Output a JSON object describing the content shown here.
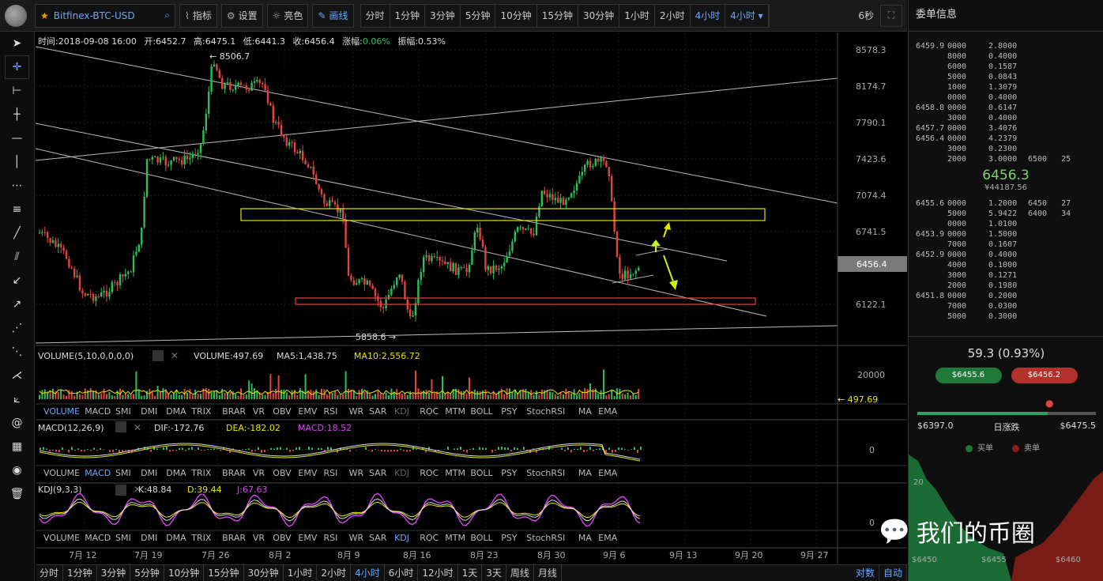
{
  "topbar": {
    "symbol": "Bitfinex-BTC-USD",
    "indicators": "指标",
    "settings": "设置",
    "brightness": "亮色",
    "draw": "画线",
    "periods": [
      "分时",
      "1分钟",
      "3分钟",
      "5分钟",
      "10分钟",
      "15分钟",
      "30分钟",
      "1小时",
      "2小时",
      "4小时",
      "4小时"
    ],
    "active_period": "4小时",
    "refresh": "6秒"
  },
  "ohlc_line": {
    "time": "时间:2018-09-08 16:00",
    "open": "开:6452.7",
    "high": "高:6475.1",
    "low": "低:6441.3",
    "close": "收:6456.4",
    "chg_label": "涨幅:",
    "chg_value": "0.06%",
    "amp": "振幅:0.53%"
  },
  "price_axis": [
    "8578.3",
    "8174.7",
    "7790.1",
    "7423.6",
    "7074.4",
    "6741.5",
    "6456.4",
    "6122.1"
  ],
  "last_price": "6456.4",
  "annotations": {
    "high": "← 8506.7",
    "low": "5858.6 →"
  },
  "volume": {
    "title": "VOLUME(5,10,0,0,0,0)",
    "vol": "VOLUME:497.69",
    "ma5": "MA5:1,438.75",
    "ma10": "MA10:2,556.72",
    "axis": "20000",
    "last": "← 497.69"
  },
  "tabs": [
    "VOLUME",
    "MACD",
    "SMI",
    "DMI",
    "DMA",
    "TRIX",
    "BRAR",
    "VR",
    "OBV",
    "EMV",
    "RSI",
    "WR",
    "SAR",
    "KDJ",
    "ROC",
    "MTM",
    "BOLL",
    "PSY",
    "StochRSI",
    "MA",
    "EMA"
  ],
  "macd": {
    "title": "MACD(12,26,9)",
    "dif": "DIF:-172.76",
    "dea": "DEA:-182.02",
    "macd": "MACD:18.52",
    "axis": "0"
  },
  "kdj": {
    "title": "KDJ(9,3,3)",
    "k": "K:48.84",
    "d": "D:39.44",
    "j": "J:67.63",
    "axis": "0"
  },
  "dates": [
    "7月 12",
    "7月 19",
    "7月 26",
    "8月 2",
    "8月 9",
    "8月 16",
    "8月 23",
    "8月 30",
    "9月 6",
    "9月 13",
    "9月 20",
    "9月 27"
  ],
  "bottom": {
    "periods": [
      "分时",
      "1分钟",
      "3分钟",
      "5分钟",
      "10分钟",
      "15分钟",
      "30分钟",
      "1小时",
      "2小时",
      "4小时",
      "6小时",
      "12小时",
      "1天",
      "3天",
      "周线",
      "月线"
    ],
    "active": "4小时",
    "log": "对数",
    "auto": "自动"
  },
  "orderbook": {
    "title": "委单信息",
    "asks": [
      [
        "6459.9",
        "0000",
        "2.8000",
        ""
      ],
      [
        "",
        "8000",
        "0.4000",
        ""
      ],
      [
        "",
        "6000",
        "0.1587",
        ""
      ],
      [
        "",
        "5000",
        "0.0843",
        ""
      ],
      [
        "",
        "1000",
        "1.3079",
        ""
      ],
      [
        "",
        "0000",
        "0.4000",
        ""
      ],
      [
        "6458.8",
        "0000",
        "0.6147",
        ""
      ],
      [
        "",
        "3000",
        "0.4000",
        ""
      ],
      [
        "6457.7",
        "0000",
        "3.4076",
        ""
      ],
      [
        "6456.4",
        "0000",
        "4.2379",
        ""
      ],
      [
        "",
        "3000",
        "0.2300",
        ""
      ],
      [
        "",
        "2000",
        "3.0000",
        "6500   25"
      ]
    ],
    "mid_price": "6456.3",
    "mid_cny": "¥44187.56",
    "bids": [
      [
        "6455.6",
        "0000",
        "1.2000",
        "6450   27"
      ],
      [
        "",
        "5000",
        "5.9422",
        "6400   34"
      ],
      [
        "",
        "0000",
        "1.0100",
        ""
      ],
      [
        "6453.9",
        "0000",
        "1.5000",
        ""
      ],
      [
        "",
        "7000",
        "0.1607",
        ""
      ],
      [
        "6452.9",
        "0000",
        "0.4000",
        ""
      ],
      [
        "",
        "4000",
        "0.1000",
        ""
      ],
      [
        "",
        "3000",
        "0.1271",
        ""
      ],
      [
        "",
        "2000",
        "0.1980",
        ""
      ],
      [
        "6451.8",
        "0000",
        "0.2000",
        ""
      ],
      [
        "",
        "7000",
        "0.0300",
        ""
      ],
      [
        "",
        "5000",
        "0.3000",
        ""
      ]
    ]
  },
  "change": {
    "value": "59.3 (0.93%)",
    "buy": "$6455.6",
    "sell": "$6456.2",
    "low": "$6397.0",
    "label": "日涨跌",
    "high": "$6475.5",
    "buy_label": "买单",
    "sell_label": "卖单",
    "fill": 0.73,
    "depth_axis": "20",
    "depth_x": [
      "$6450",
      "$6455",
      "$6460"
    ]
  },
  "watermark": "我们的币圈",
  "colors": {
    "up": "#2dbd5a",
    "down": "#e0463f",
    "accent": "#6aa6ff"
  }
}
